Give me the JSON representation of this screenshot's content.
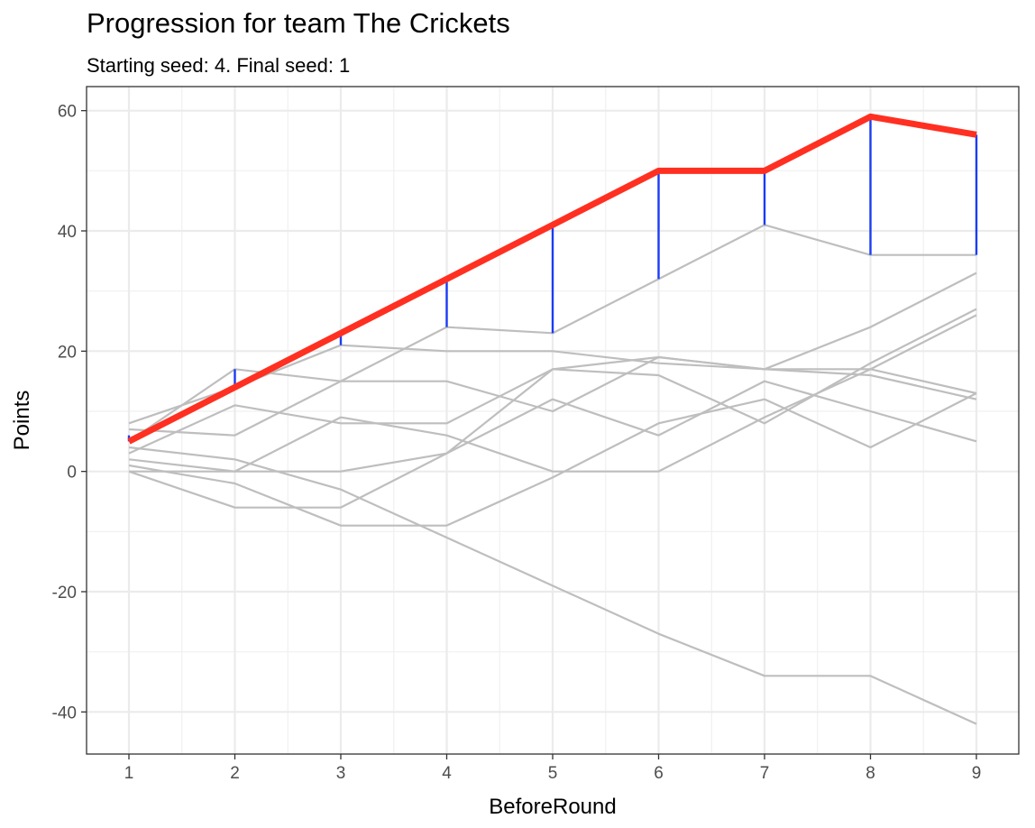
{
  "chart_data": {
    "type": "line",
    "title": "Progression for team The Crickets",
    "subtitle": "Starting seed: 4.  Final seed: 1",
    "xlabel": "BeforeRound",
    "ylabel": "Points",
    "x": [
      1,
      2,
      3,
      4,
      5,
      6,
      7,
      8,
      9
    ],
    "xlim": [
      0.6,
      9.4
    ],
    "ylim": [
      -47,
      64
    ],
    "x_ticks": [
      1,
      2,
      3,
      4,
      5,
      6,
      7,
      8,
      9
    ],
    "y_ticks": [
      -40,
      -20,
      0,
      20,
      40,
      60
    ],
    "grid": true,
    "highlight_color": "#ff3021",
    "gap_color": "#1a3cf5",
    "other_color": "#bebebe",
    "highlight": {
      "values": [
        5,
        14,
        23,
        32,
        41,
        50,
        50,
        59,
        56
      ]
    },
    "leader": [
      6,
      17,
      21,
      24,
      23,
      32,
      41,
      36,
      36
    ],
    "others": [
      {
        "values": [
          8,
          14,
          21,
          20,
          20,
          18,
          17,
          16,
          12
        ]
      },
      {
        "values": [
          7,
          6,
          15,
          15,
          10,
          19,
          17,
          24,
          33
        ]
      },
      {
        "values": [
          5,
          17,
          15,
          24,
          23,
          32,
          41,
          36,
          36
        ]
      },
      {
        "values": [
          4,
          2,
          -3,
          -11,
          -19,
          -27,
          -34,
          -34,
          -42
        ]
      },
      {
        "values": [
          3,
          11,
          8,
          8,
          17,
          16,
          8,
          18,
          27
        ]
      },
      {
        "values": [
          2,
          0,
          0,
          3,
          12,
          6,
          15,
          10,
          5
        ]
      },
      {
        "values": [
          1,
          -2,
          -9,
          -9,
          -1,
          8,
          12,
          4,
          13
        ]
      },
      {
        "values": [
          0,
          0,
          9,
          6,
          0,
          0,
          9,
          17,
          26
        ]
      },
      {
        "values": [
          0,
          -6,
          -6,
          3,
          17,
          19,
          17,
          17,
          13
        ]
      }
    ]
  }
}
